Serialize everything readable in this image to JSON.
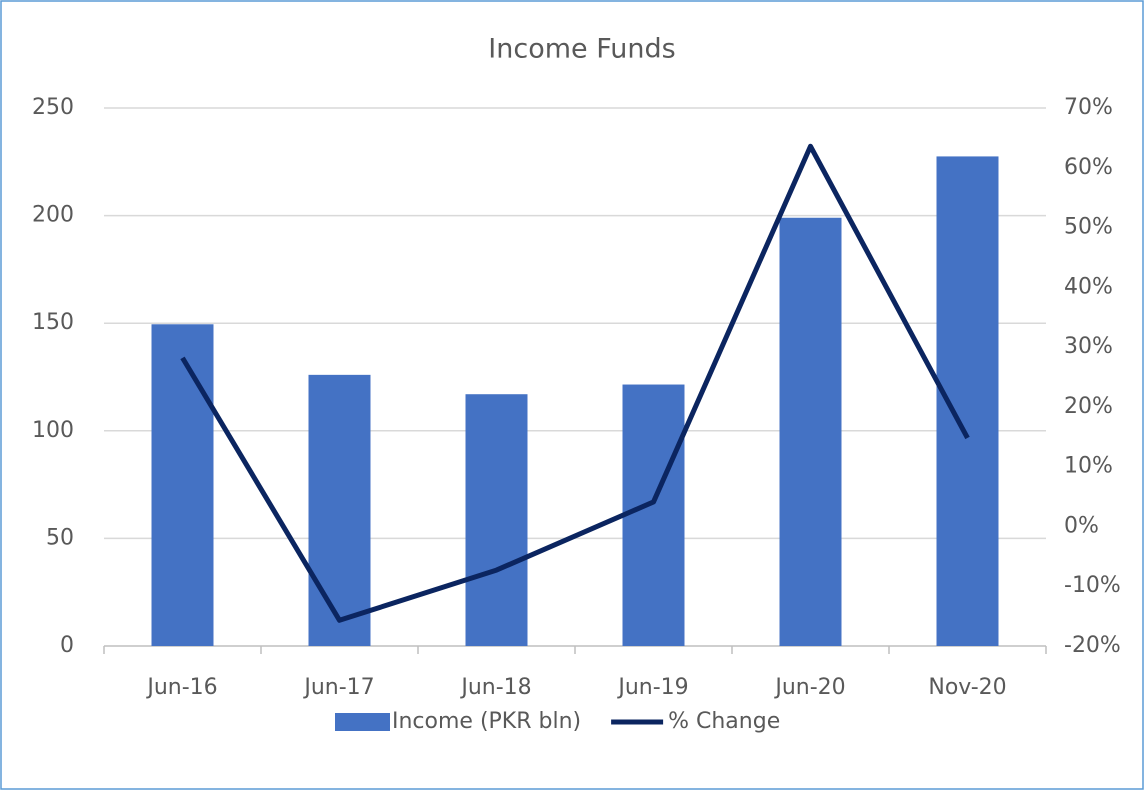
{
  "chart_data": {
    "type": "bar",
    "title": "Income Funds",
    "categories": [
      "Jun-16",
      "Jun-17",
      "Jun-18",
      "Jun-19",
      "Jun-20",
      "Nov-20"
    ],
    "series": [
      {
        "name": "Income (PKR bln)",
        "type": "bar",
        "color": "#4472c4",
        "values": [
          149.5,
          126,
          117,
          121.5,
          199,
          227.5
        ]
      },
      {
        "name": "% Change",
        "type": "line",
        "color": "#0b2560",
        "axis": "y2",
        "values": [
          28.2,
          -15.7,
          -7.3,
          4.1,
          63.6,
          14.8
        ]
      }
    ],
    "ylim": [
      0,
      250
    ],
    "yticks": [
      0,
      50,
      100,
      150,
      200,
      250
    ],
    "y2lim": [
      -20,
      70
    ],
    "y2ticks": [
      {
        "value": -20,
        "label": "-20%"
      },
      {
        "value": -10,
        "label": "-10%"
      },
      {
        "value": 0,
        "label": "0%"
      },
      {
        "value": 10,
        "label": "10%"
      },
      {
        "value": 20,
        "label": "20%"
      },
      {
        "value": 30,
        "label": "30%"
      },
      {
        "value": 40,
        "label": "40%"
      },
      {
        "value": 50,
        "label": "50%"
      },
      {
        "value": 60,
        "label": "60%"
      },
      {
        "value": 70,
        "label": "70%"
      }
    ],
    "grid": true,
    "legend": "bottom"
  }
}
